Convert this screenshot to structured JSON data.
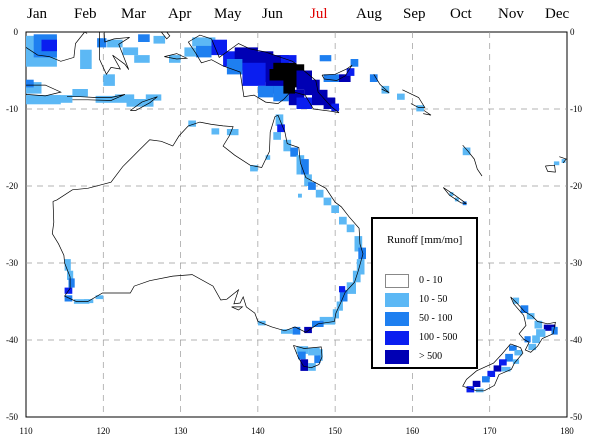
{
  "months": [
    {
      "label": "Jan",
      "selected": false
    },
    {
      "label": "Feb",
      "selected": false
    },
    {
      "label": "Mar",
      "selected": false
    },
    {
      "label": "Apr",
      "selected": false
    },
    {
      "label": "May",
      "selected": false
    },
    {
      "label": "Jun",
      "selected": false
    },
    {
      "label": "Jul",
      "selected": true
    },
    {
      "label": "Aug",
      "selected": false
    },
    {
      "label": "Sep",
      "selected": false
    },
    {
      "label": "Oct",
      "selected": false
    },
    {
      "label": "Nov",
      "selected": false
    },
    {
      "label": "Dec",
      "selected": false
    }
  ],
  "axes": {
    "lon_ticks": [
      "110",
      "120",
      "130",
      "140",
      "150",
      "160",
      "170",
      "180"
    ],
    "lat_ticks": [
      "0",
      "-10",
      "-20",
      "-30",
      "-40",
      "-50"
    ],
    "lon_range": [
      110,
      180
    ],
    "lat_range": [
      0,
      -50
    ],
    "grid": true
  },
  "legend": {
    "title": "Runoff [mm/mo]",
    "items": [
      {
        "label": "0  -  10",
        "color": "#ffffff"
      },
      {
        "label": "10  -  50",
        "color": "#5cb8f5"
      },
      {
        "label": "50  -  100",
        "color": "#1e7ff0"
      },
      {
        "label": "100  -  500",
        "color": "#0a1ef0"
      },
      {
        "label": ">  500",
        "color": "#0000b4"
      }
    ]
  }
}
